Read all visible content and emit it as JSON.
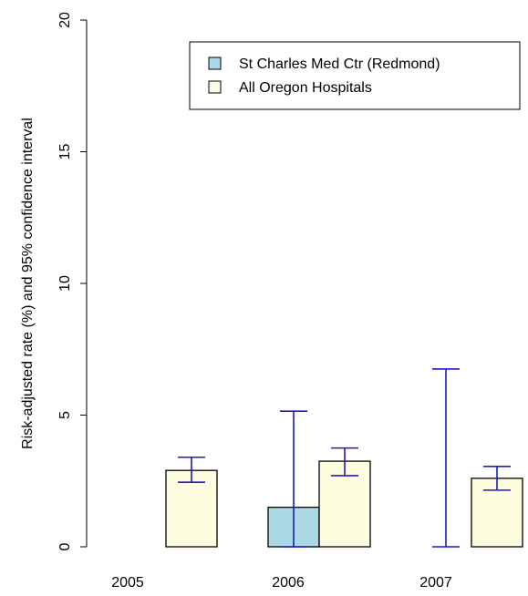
{
  "chart_data": {
    "type": "bar",
    "title": "",
    "xlabel": "",
    "ylabel": "Risk-adjusted rate (%) and 95% confidence interval",
    "ylim": [
      0,
      20
    ],
    "y_ticks": [
      "0",
      "5",
      "10",
      "15",
      "20"
    ],
    "categories": [
      "2005",
      "2006",
      "2007"
    ],
    "grid": false,
    "legend_position": "top-right",
    "error_bar_color": "#1a1acc",
    "series": [
      {
        "name": "St Charles Med Ctr (Redmond)",
        "color": "#add8e6",
        "values": [
          null,
          1.5,
          0
        ],
        "ci_low": [
          null,
          0,
          0
        ],
        "ci_high": [
          null,
          5.15,
          6.75
        ]
      },
      {
        "name": "All Oregon Hospitals",
        "color": "#fffde0",
        "values": [
          2.9,
          3.25,
          2.6
        ],
        "ci_low": [
          2.45,
          2.7,
          2.15
        ],
        "ci_high": [
          3.4,
          3.75,
          3.05
        ]
      }
    ]
  }
}
